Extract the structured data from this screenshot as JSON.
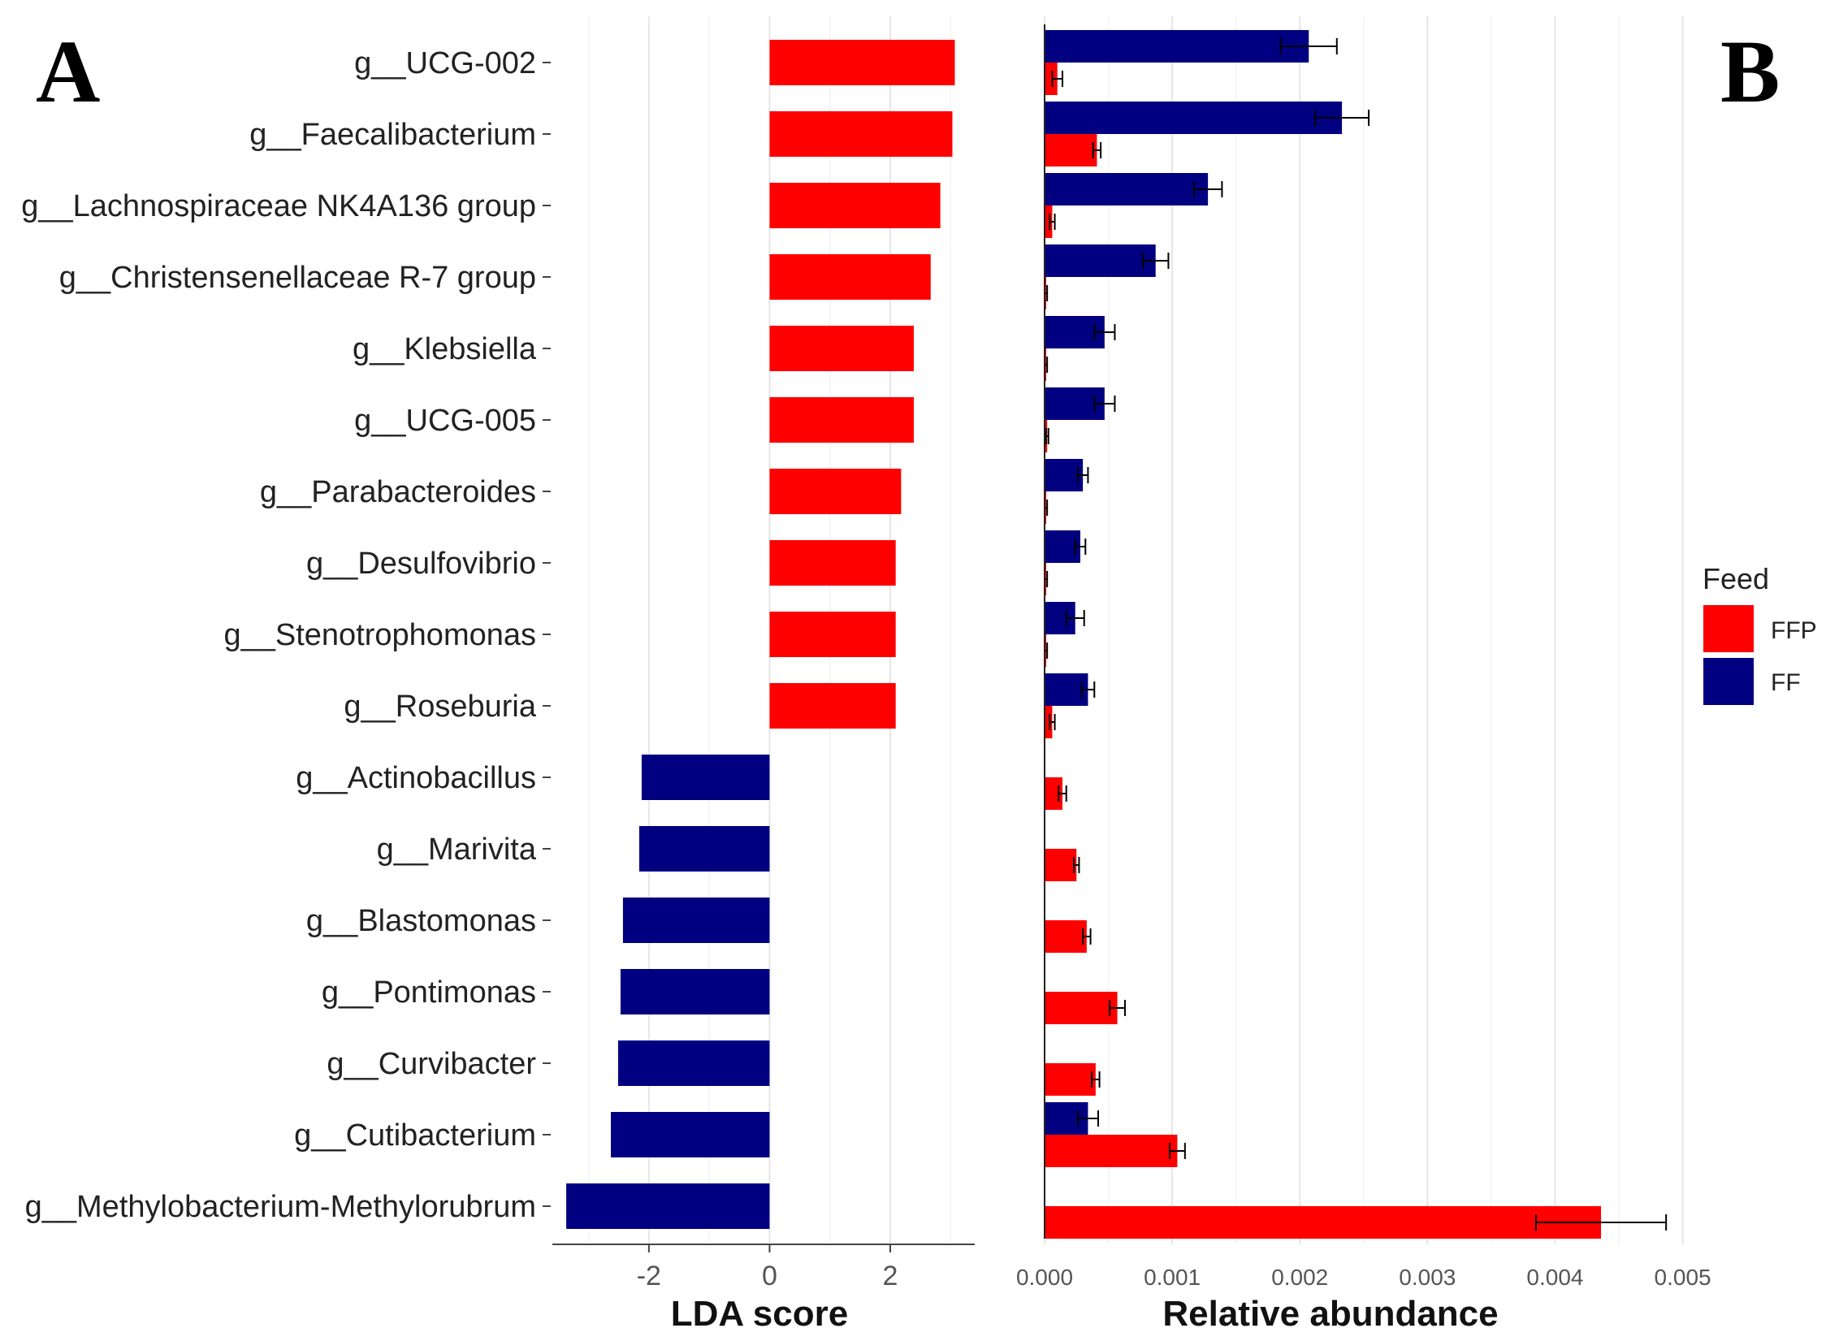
{
  "chart_data": [
    {
      "type": "bar",
      "orientation": "horizontal",
      "panel": "A",
      "xlabel": "LDA score",
      "xlim": [
        -3.6,
        3.4
      ],
      "xticks": [
        -2,
        0,
        2
      ],
      "grid": true,
      "colors": {
        "positive": "#ff0000",
        "negative": "#000080"
      },
      "categories": [
        "g__UCG-002",
        "g__Faecalibacterium",
        "g__Lachnospiraceae NK4A136 group",
        "g__Christensenellaceae R-7 group",
        "g__Klebsiella",
        "g__UCG-005",
        "g__Parabacteroides",
        "g__Desulfovibrio",
        "g__Stenotrophomonas",
        "g__Roseburia",
        "g__Actinobacillus",
        "g__Marivita",
        "g__Blastomonas",
        "g__Pontimonas",
        "g__Curvibacter",
        "g__Cutibacterium",
        "g__Methylobacterium-Methylorubrum"
      ],
      "values": [
        3.07,
        3.03,
        2.83,
        2.67,
        2.39,
        2.39,
        2.18,
        2.09,
        2.09,
        2.09,
        -2.12,
        -2.16,
        -2.43,
        -2.47,
        -2.51,
        -2.63,
        -3.37
      ]
    },
    {
      "type": "bar",
      "orientation": "horizontal",
      "panel": "B",
      "xlabel": "Relative abundance",
      "xlim": [
        0,
        0.0052
      ],
      "xticks": [
        0.0,
        0.001,
        0.002,
        0.003,
        0.004,
        0.005
      ],
      "xtick_labels": [
        "0.000",
        "0.001",
        "0.002",
        "0.003",
        "0.004",
        "0.005"
      ],
      "grid": true,
      "legend": {
        "title": "Feed",
        "position": "right"
      },
      "series": [
        {
          "name": "FFP",
          "color": "#ff0000",
          "values": [
            0.0001,
            0.00041,
            6e-05,
            1e-05,
            1e-05,
            2e-05,
            1e-05,
            1e-05,
            1e-05,
            6e-05,
            0.00014,
            0.00025,
            0.00033,
            0.00057,
            0.0004,
            0.00104,
            0.00436
          ],
          "errors": [
            4e-05,
            3e-05,
            2e-05,
            1e-05,
            1e-05,
            1e-05,
            1e-05,
            1e-05,
            1e-05,
            2e-05,
            3e-05,
            2e-05,
            3e-05,
            6e-05,
            3e-05,
            6e-05,
            0.00051
          ]
        },
        {
          "name": "FF",
          "color": "#000080",
          "values": [
            0.00207,
            0.00233,
            0.00128,
            0.00087,
            0.00047,
            0.00047,
            0.0003,
            0.00028,
            0.00024,
            0.00034,
            0.0,
            0.0,
            0.0,
            0.0,
            0.0,
            0.00034,
            0.0
          ],
          "errors": [
            0.00022,
            0.00021,
            0.00011,
            0.0001,
            8e-05,
            8e-05,
            4e-05,
            4e-05,
            7e-05,
            5e-05,
            0.0,
            0.0,
            0.0,
            0.0,
            0.0,
            8e-05,
            0.0
          ]
        }
      ]
    }
  ],
  "panels": {
    "a_label": "A",
    "b_label": "B"
  }
}
